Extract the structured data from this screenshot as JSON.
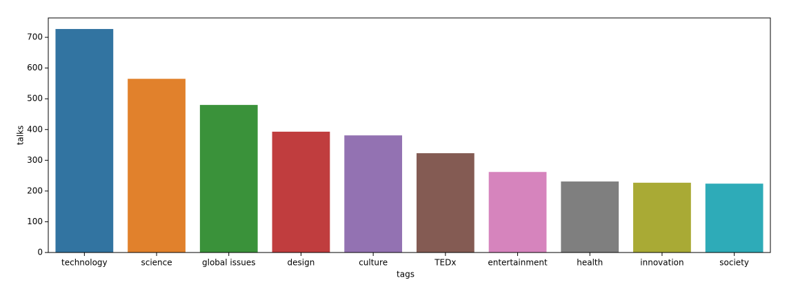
{
  "chart_data": {
    "type": "bar",
    "x_label": "tags",
    "y_label": "talks",
    "categories": [
      "technology",
      "science",
      "global issues",
      "design",
      "culture",
      "TEDx",
      "entertainment",
      "health",
      "innovation",
      "society"
    ],
    "values": [
      727,
      565,
      480,
      393,
      381,
      323,
      262,
      231,
      227,
      224
    ],
    "colors": [
      "#3274a1",
      "#e1812c",
      "#3a923a",
      "#c03d3e",
      "#9372b2",
      "#845b53",
      "#d684bd",
      "#7f7f7f",
      "#a9aa35",
      "#2eabb8"
    ],
    "ylim": [
      0,
      763
    ],
    "yticks": [
      0,
      100,
      200,
      300,
      400,
      500,
      600,
      700
    ],
    "grid": false
  }
}
